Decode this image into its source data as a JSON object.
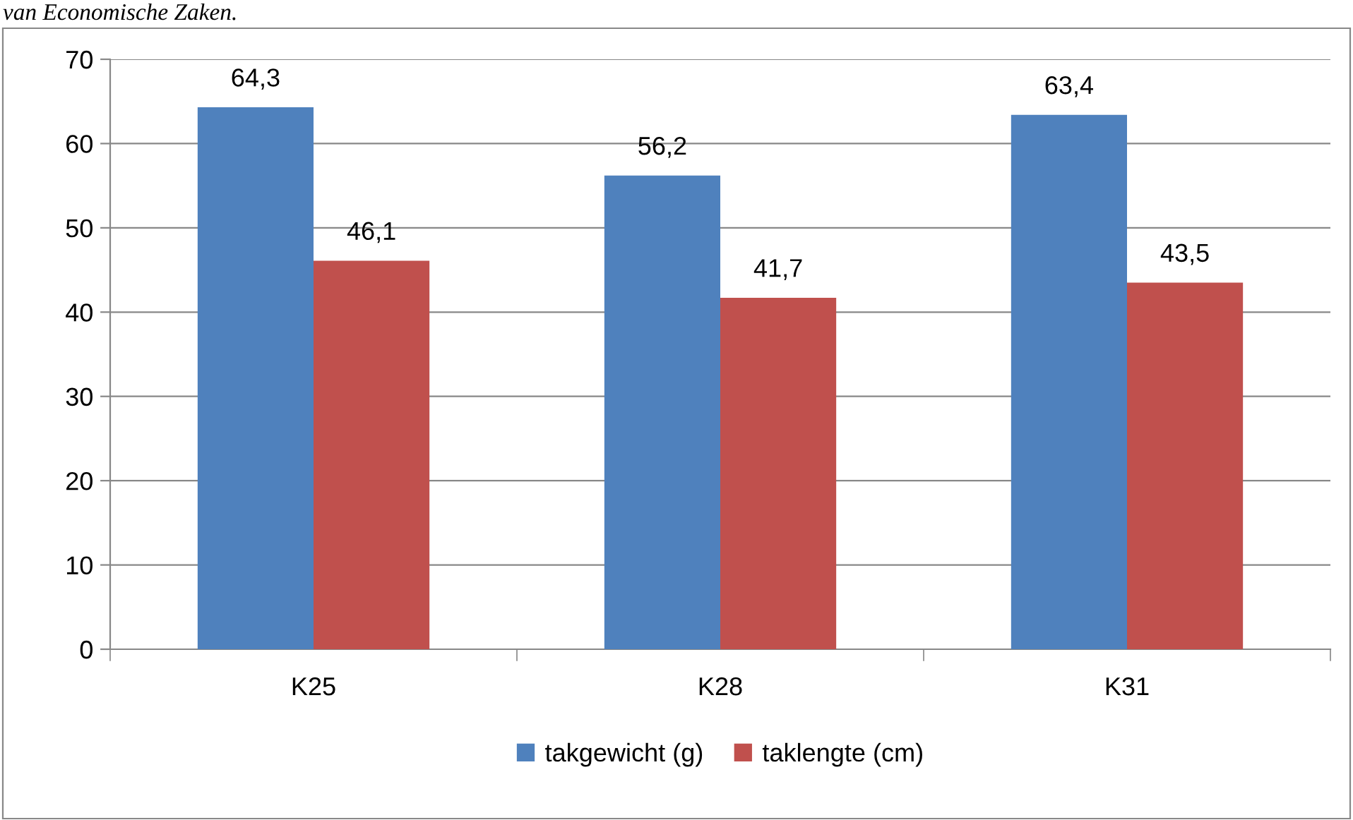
{
  "chart_data": {
    "type": "bar",
    "annotations": [
      "van Economische Zaken."
    ],
    "categories": [
      "K25",
      "K28",
      "K31"
    ],
    "series": [
      {
        "name": "takgewicht (g)",
        "color": "#4f81bd",
        "values": [
          64.3,
          56.2,
          63.4
        ],
        "value_labels": [
          "64,3",
          "56,2",
          "63,4"
        ]
      },
      {
        "name": "taklengte (cm)",
        "color": "#c0504d",
        "values": [
          46.1,
          41.7,
          43.5
        ],
        "value_labels": [
          "46,1",
          "41,7",
          "43,5"
        ]
      }
    ],
    "ylim": [
      0,
      70
    ],
    "yticks": [
      0,
      10,
      20,
      30,
      40,
      50,
      60,
      70
    ],
    "grid": "y",
    "legend": "bottom"
  }
}
